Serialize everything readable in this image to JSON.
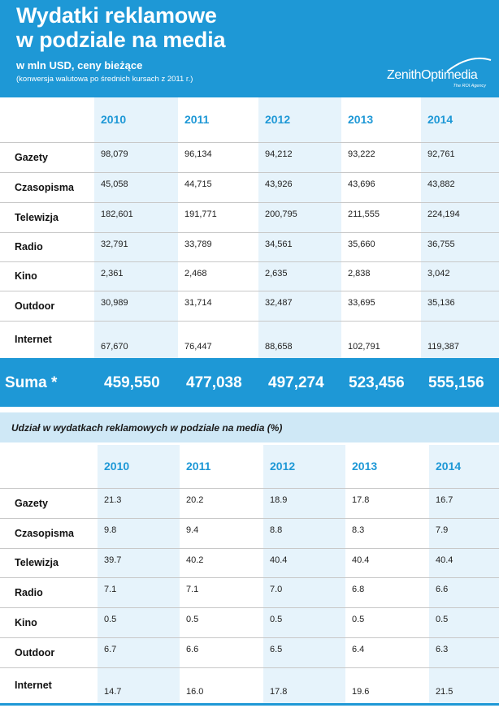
{
  "header": {
    "title_line1": "Wydatki reklamowe",
    "title_line2": "w podziale na media",
    "subtitle": "w mln USD, ceny bieżące",
    "note": "(konwersja walutowa po średnich kursach z 2011 r.)",
    "logo_main": "ZenithOptimedia",
    "logo_tagline": "The ROI Agency"
  },
  "colors": {
    "accent": "#1e98d6",
    "light_band": "#e6f3fb",
    "section_bg": "#cfe8f6"
  },
  "chart_data": [
    {
      "type": "table",
      "title": "Wydatki reklamowe w podziale na media (w mln USD)",
      "years": [
        "2010",
        "2011",
        "2012",
        "2013",
        "2014"
      ],
      "rows": [
        {
          "label": "Gazety",
          "values": [
            "98,079",
            "96,134",
            "94,212",
            "93,222",
            "92,761"
          ]
        },
        {
          "label": "Czasopisma",
          "values": [
            "45,058",
            "44,715",
            "43,926",
            "43,696",
            "43,882"
          ]
        },
        {
          "label": "Telewizja",
          "values": [
            "182,601",
            "191,771",
            "200,795",
            "211,555",
            "224,194"
          ]
        },
        {
          "label": "Radio",
          "values": [
            "32,791",
            "33,789",
            "34,561",
            "35,660",
            "36,755"
          ]
        },
        {
          "label": "Kino",
          "values": [
            "2,361",
            "2,468",
            "2,635",
            "2,838",
            "3,042"
          ]
        },
        {
          "label": "Outdoor",
          "values": [
            "30,989",
            "31,714",
            "32,487",
            "33,695",
            "35,136"
          ]
        },
        {
          "label": "Internet",
          "values": [
            "67,670",
            "76,447",
            "88,658",
            "102,791",
            "119,387"
          ]
        }
      ],
      "total": {
        "label": "Suma *",
        "values": [
          "459,550",
          "477,038",
          "497,274",
          "523,456",
          "555,156"
        ]
      }
    },
    {
      "type": "table",
      "title": "Udział w wydatkach reklamowych w podziale na media (%)",
      "years": [
        "2010",
        "2011",
        "2012",
        "2013",
        "2014"
      ],
      "rows": [
        {
          "label": "Gazety",
          "values": [
            "21.3",
            "20.2",
            "18.9",
            "17.8",
            "16.7"
          ]
        },
        {
          "label": "Czasopisma",
          "values": [
            "9.8",
            "9.4",
            "8.8",
            "8.3",
            "7.9"
          ]
        },
        {
          "label": "Telewizja",
          "values": [
            "39.7",
            "40.2",
            "40.4",
            "40.4",
            "40.4"
          ]
        },
        {
          "label": "Radio",
          "values": [
            "7.1",
            "7.1",
            "7.0",
            "6.8",
            "6.6"
          ]
        },
        {
          "label": "Kino",
          "values": [
            "0.5",
            "0.5",
            "0.5",
            "0.5",
            "0.5"
          ]
        },
        {
          "label": "Outdoor",
          "values": [
            "6.7",
            "6.6",
            "6.5",
            "6.4",
            "6.3"
          ]
        },
        {
          "label": "Internet",
          "values": [
            "14.7",
            "16.0",
            "17.8",
            "19.6",
            "21.5"
          ]
        }
      ]
    }
  ]
}
